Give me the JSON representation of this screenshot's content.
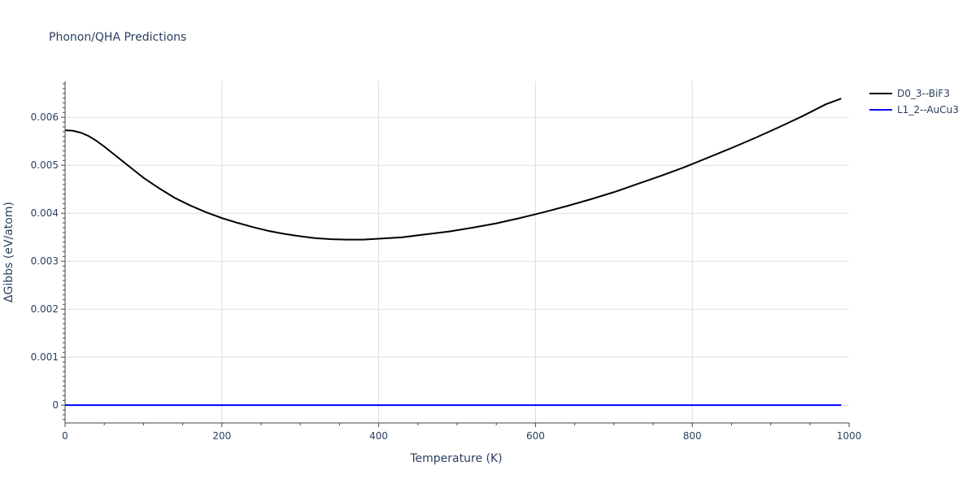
{
  "chart_data": {
    "type": "line",
    "title": "Phonon/QHA Predictions",
    "xlabel": "Temperature (K)",
    "ylabel": "ΔGibbs (eV/atom)",
    "xlim": [
      0,
      1000
    ],
    "ylim": [
      -0.00037,
      0.00675
    ],
    "x_ticks": [
      0,
      200,
      400,
      600,
      800,
      1000
    ],
    "x_tick_labels": [
      "0",
      "200",
      "400",
      "600",
      "800",
      "1000"
    ],
    "y_ticks": [
      0,
      0.001,
      0.002,
      0.003,
      0.004,
      0.005,
      0.006
    ],
    "y_tick_labels": [
      "0",
      "0.001",
      "0.002",
      "0.003",
      "0.004",
      "0.005",
      "0.006"
    ],
    "grid": true,
    "legend_position": "top-right",
    "series": [
      {
        "name": "D0_3--BiF3",
        "color": "#000000",
        "x": [
          0,
          10,
          20,
          30,
          40,
          50,
          60,
          70,
          80,
          90,
          100,
          120,
          140,
          160,
          180,
          200,
          220,
          240,
          260,
          280,
          300,
          320,
          340,
          360,
          380,
          400,
          430,
          460,
          490,
          520,
          550,
          580,
          610,
          640,
          670,
          700,
          730,
          760,
          790,
          820,
          850,
          880,
          910,
          940,
          970,
          990
        ],
        "y": [
          0.00573,
          0.00572,
          0.00568,
          0.00561,
          0.00551,
          0.00539,
          0.00526,
          0.00513,
          0.005,
          0.00487,
          0.00474,
          0.00452,
          0.00432,
          0.00416,
          0.00402,
          0.0039,
          0.0038,
          0.00371,
          0.00363,
          0.00357,
          0.00352,
          0.00348,
          0.00346,
          0.00345,
          0.00345,
          0.00347,
          0.0035,
          0.00356,
          0.00362,
          0.0037,
          0.00379,
          0.0039,
          0.00402,
          0.00415,
          0.00429,
          0.00444,
          0.00461,
          0.00478,
          0.00496,
          0.00516,
          0.00536,
          0.00557,
          0.00579,
          0.00602,
          0.00627,
          0.00639
        ]
      },
      {
        "name": "L1_2--AuCu3",
        "color": "#0000ff",
        "x": [
          0,
          990
        ],
        "y": [
          0,
          0
        ]
      }
    ]
  }
}
